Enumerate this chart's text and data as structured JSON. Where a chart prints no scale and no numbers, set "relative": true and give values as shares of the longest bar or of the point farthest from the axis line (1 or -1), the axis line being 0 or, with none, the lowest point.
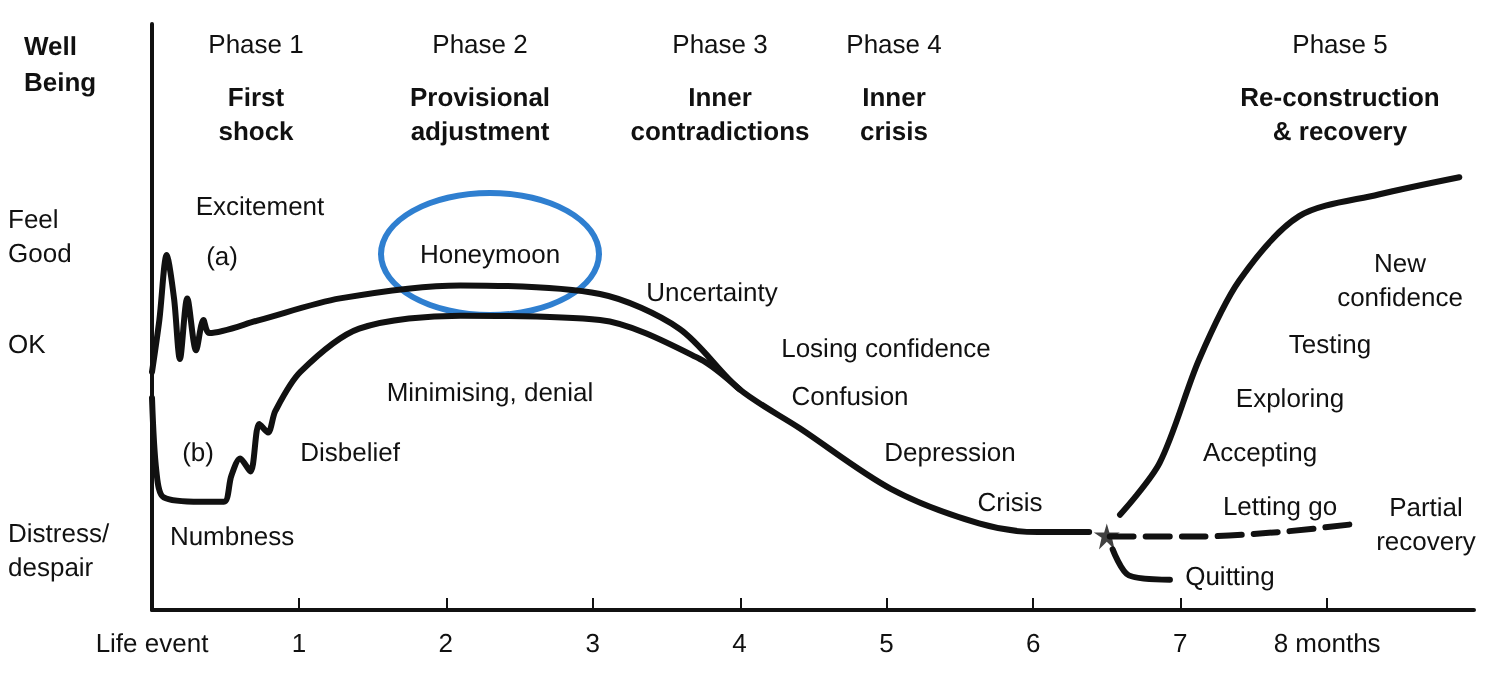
{
  "chart_data": {
    "type": "line",
    "ylabel": "Well\nBeing",
    "relative": true,
    "xlim": [
      0,
      9
    ],
    "xticks": [
      {
        "value": 0,
        "label": "Life event"
      },
      1,
      2,
      3,
      4,
      5,
      6,
      7,
      {
        "value": 8,
        "label": "8 months"
      }
    ],
    "marker": "none",
    "line_style": "solid",
    "series": [
      {
        "color": "#111111",
        "x": [
          0,
          0.05,
          0.1,
          0.15,
          0.19,
          0.24,
          0.3,
          0.35,
          0.39,
          0.73,
          1.28,
          2.1,
          3.05,
          3.59,
          4.0,
          4.41,
          5.03,
          5.63,
          6.03,
          6.38
        ],
        "values": [
          0.55,
          0.67,
          0.82,
          0.72,
          0.58,
          0.72,
          0.6,
          0.67,
          0.64,
          0.67,
          0.72,
          0.75,
          0.73,
          0.65,
          0.51,
          0.42,
          0.28,
          0.2,
          0.18,
          0.18
        ]
      },
      {
        "color": "#111111",
        "x": [
          0,
          0.03,
          0.08,
          0.33,
          0.49,
          0.54,
          0.6,
          0.67,
          0.73,
          0.79,
          0.84,
          1.01,
          1.41,
          2.1,
          3.05,
          3.73,
          4.0
        ],
        "values": [
          0.49,
          0.32,
          0.26,
          0.25,
          0.25,
          0.31,
          0.35,
          0.32,
          0.43,
          0.41,
          0.46,
          0.55,
          0.65,
          0.68,
          0.67,
          0.58,
          0.51
        ]
      },
      {
        "color": "#111111",
        "x": [
          6.59,
          6.86,
          7.13,
          7.4,
          7.81,
          8.35,
          8.9
        ],
        "values": [
          0.22,
          0.34,
          0.58,
          0.76,
          0.91,
          0.96,
          1
        ]
      },
      {
        "color": "#111111",
        "line_style": "dashed",
        "x": [
          6.52,
          7.13,
          7.67,
          8.22
        ],
        "values": [
          0.17,
          0.17,
          0.18,
          0.2
        ]
      },
      {
        "color": "#111111",
        "x": [
          6.54,
          6.65,
          6.93
        ],
        "values": [
          0.14,
          0.08,
          0.07
        ]
      },
      {
        "type": "scatter",
        "marker": "star",
        "color": "#111111",
        "x": [
          6.5
        ],
        "values": [
          0.17
        ]
      }
    ],
    "annotations": [
      "Phase 1",
      "First\nshock",
      "Phase 2",
      "Provisional\nadjustment",
      "Phase 3",
      "Inner\ncontradictions",
      "Phase 4",
      "Inner\ncrisis",
      "Phase 5",
      "Re-construction\n& recovery",
      "Excitement",
      "(a)",
      "Honeymoon",
      "(b)",
      "Disbelief",
      "Numbness",
      "Minimising, denial",
      "Uncertainty",
      "Losing confidence",
      "Confusion",
      "Depression",
      "Crisis",
      "New\nconfidence",
      "Testing",
      "Exploring",
      "Accepting",
      "Letting go",
      "Partial\nrecovery",
      "Quitting",
      "Feel\nGood",
      "OK",
      "Distress/\ndespair"
    ]
  }
}
